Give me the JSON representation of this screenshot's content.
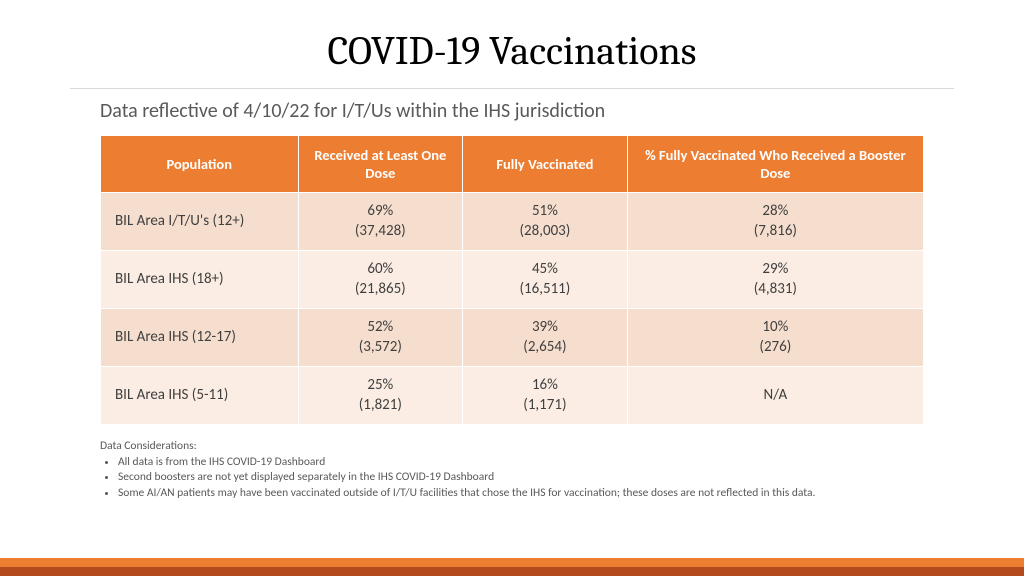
{
  "title": "COVID-19 Vaccinations",
  "subtitle": "Data reflective of 4/10/22 for I/T/Us within the IHS jurisdiction",
  "table": {
    "columns": [
      "Population",
      "Received at Least One Dose",
      "Fully Vaccinated",
      "% Fully Vaccinated Who Received a Booster Dose"
    ],
    "rows": [
      {
        "pop": "BIL Area I/T/U's (12+)",
        "dose1_pct": "69%",
        "dose1_n": "(37,428)",
        "full_pct": "51%",
        "full_n": "(28,003)",
        "boost_pct": "28%",
        "boost_n": "(7,816)"
      },
      {
        "pop": "BIL Area IHS (18+)",
        "dose1_pct": "60%",
        "dose1_n": "(21,865)",
        "full_pct": "45%",
        "full_n": "(16,511)",
        "boost_pct": "29%",
        "boost_n": "(4,831)"
      },
      {
        "pop": "BIL Area IHS (12-17)",
        "dose1_pct": "52%",
        "dose1_n": "(3,572)",
        "full_pct": "39%",
        "full_n": "(2,654)",
        "boost_pct": "10%",
        "boost_n": "(276)"
      },
      {
        "pop": "BIL Area IHS (5-11)",
        "dose1_pct": "25%",
        "dose1_n": "(1,821)",
        "full_pct": "16%",
        "full_n": "(1,171)",
        "boost_pct": "N/A",
        "boost_n": ""
      }
    ]
  },
  "notes": {
    "heading": "Data Considerations:",
    "items": [
      "All data is from the IHS COVID-19 Dashboard",
      "Second boosters are not yet displayed separately in the IHS COVID-19 Dashboard",
      "Some AI/AN patients may have been vaccinated outside of I/T/U facilities that chose the IHS for vaccination; these doses are not reflected in this data."
    ]
  },
  "colors": {
    "header_bg": "#ed7d31",
    "row_a_bg": "#f6dece",
    "row_b_bg": "#fbede3",
    "bar_top": "#ed7d31",
    "bar_bot": "#b24a1e"
  }
}
